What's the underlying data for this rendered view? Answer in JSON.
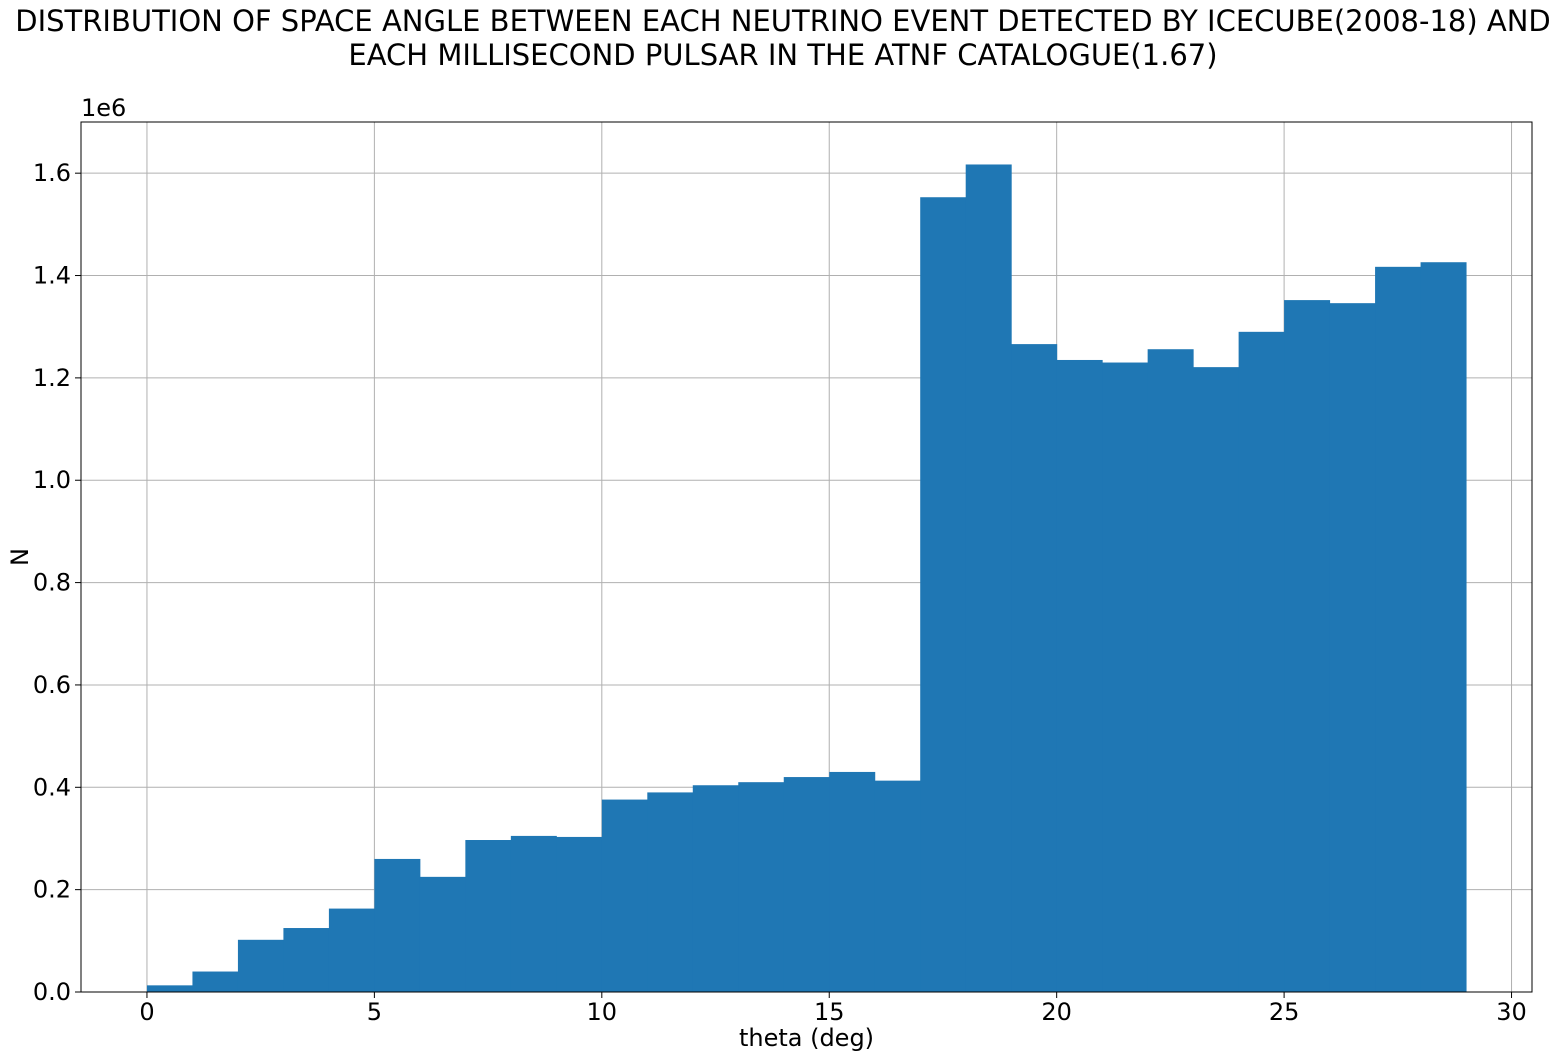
{
  "chart_data": {
    "type": "bar",
    "title_line1": "DISTRIBUTION OF SPACE ANGLE BETWEEN EACH NEUTRINO EVENT DETECTED BY ICECUBE(2008-18) AND",
    "title_line2": "EACH MILLISECOND PULSAR IN THE ATNF CATALOGUE(1.67)",
    "xlabel": "theta (deg)",
    "ylabel": "N",
    "y_scale_label": "1e6",
    "xlim": [
      -1.45,
      30.45
    ],
    "ylim": [
      0,
      1.7
    ],
    "xticks": [
      0,
      5,
      10,
      15,
      20,
      25,
      30
    ],
    "xtick_labels": [
      "0",
      "5",
      "10",
      "15",
      "20",
      "25",
      "30"
    ],
    "yticks": [
      0.0,
      0.2,
      0.4,
      0.6,
      0.8,
      1.0,
      1.2,
      1.4,
      1.6
    ],
    "ytick_labels": [
      "0.0",
      "0.2",
      "0.4",
      "0.6",
      "0.8",
      "1.0",
      "1.2",
      "1.4",
      "1.6"
    ],
    "grid": true,
    "bar_color": "#1f77b4",
    "bins": [
      {
        "x0": 0,
        "x1": 1,
        "value": 0.013
      },
      {
        "x0": 1,
        "x1": 2,
        "value": 0.04
      },
      {
        "x0": 2,
        "x1": 3,
        "value": 0.102
      },
      {
        "x0": 3,
        "x1": 4,
        "value": 0.125
      },
      {
        "x0": 4,
        "x1": 5,
        "value": 0.163
      },
      {
        "x0": 5,
        "x1": 6,
        "value": 0.26
      },
      {
        "x0": 6,
        "x1": 7,
        "value": 0.225
      },
      {
        "x0": 7,
        "x1": 8,
        "value": 0.297
      },
      {
        "x0": 8,
        "x1": 9,
        "value": 0.305
      },
      {
        "x0": 9,
        "x1": 10,
        "value": 0.303
      },
      {
        "x0": 10,
        "x1": 11,
        "value": 0.376
      },
      {
        "x0": 11,
        "x1": 12,
        "value": 0.39
      },
      {
        "x0": 12,
        "x1": 13,
        "value": 0.404
      },
      {
        "x0": 13,
        "x1": 14,
        "value": 0.41
      },
      {
        "x0": 14,
        "x1": 15,
        "value": 0.42
      },
      {
        "x0": 15,
        "x1": 16,
        "value": 0.43
      },
      {
        "x0": 16,
        "x1": 17,
        "value": 0.413
      },
      {
        "x0": 17,
        "x1": 18,
        "value": 1.553
      },
      {
        "x0": 18,
        "x1": 19,
        "value": 1.617
      },
      {
        "x0": 19,
        "x1": 20,
        "value": 1.266
      },
      {
        "x0": 20,
        "x1": 21,
        "value": 1.235
      },
      {
        "x0": 21,
        "x1": 22,
        "value": 1.23
      },
      {
        "x0": 22,
        "x1": 23,
        "value": 1.256
      },
      {
        "x0": 23,
        "x1": 24,
        "value": 1.221
      },
      {
        "x0": 24,
        "x1": 25,
        "value": 1.29
      },
      {
        "x0": 25,
        "x1": 26,
        "value": 1.352
      },
      {
        "x0": 26,
        "x1": 27,
        "value": 1.346
      },
      {
        "x0": 27,
        "x1": 28,
        "value": 1.417
      },
      {
        "x0": 28,
        "x1": 29,
        "value": 1.426
      }
    ]
  }
}
